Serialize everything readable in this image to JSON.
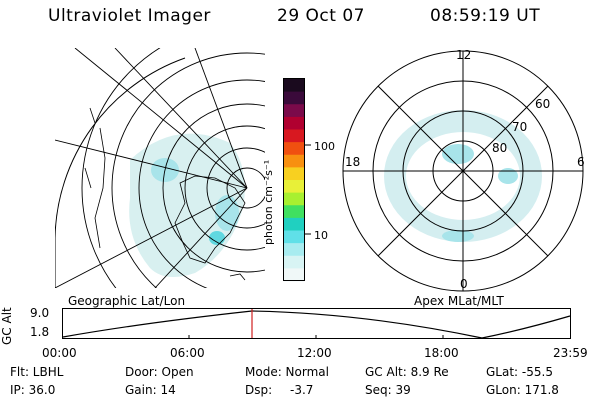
{
  "header": {
    "instrument": "Ultraviolet Imager",
    "date": "29 Oct 07",
    "time": "08:59:19 UT"
  },
  "left_panel": {
    "caption": "Geographic Lat/Lon"
  },
  "right_panel": {
    "caption": "Apex MLat/MLT",
    "mlt_labels": {
      "top": "12",
      "bottom": "0",
      "left": "18",
      "right": "6"
    },
    "lat_labels": [
      "60",
      "70",
      "80"
    ]
  },
  "colorbar": {
    "unit_label": "photon cm⁻²s⁻¹",
    "ticks": [
      "100",
      "10"
    ],
    "colors": [
      "#1a0a1e",
      "#3a0a3a",
      "#7a0a4a",
      "#b00030",
      "#d81820",
      "#f05010",
      "#f89010",
      "#f8d020",
      "#e8f038",
      "#a8f030",
      "#40e060",
      "#20d0c0",
      "#60e0e8",
      "#a8ecf0",
      "#d8f4f4",
      "#f0f8f8"
    ]
  },
  "timeline": {
    "y_label": "GC Alt",
    "y_ticks": [
      "9.0",
      "1.8"
    ],
    "x_ticks": [
      "00:00",
      "06:00",
      "12:00",
      "18:00",
      "23:59"
    ],
    "marker_color": "#d02020"
  },
  "footer": {
    "filter": "Flt: LBHL",
    "door": "Door: Open",
    "mode": "Mode: Normal",
    "gc_alt": "GC Alt: 8.9 Re",
    "glat": "GLat: -55.5",
    "ip": "IP: 36.0",
    "gain": "Gain: 14",
    "dsp_label": "Dsp:",
    "dsp_value": "-3.7",
    "seq": "Seq: 39",
    "glon": "GLon: 171.8"
  }
}
